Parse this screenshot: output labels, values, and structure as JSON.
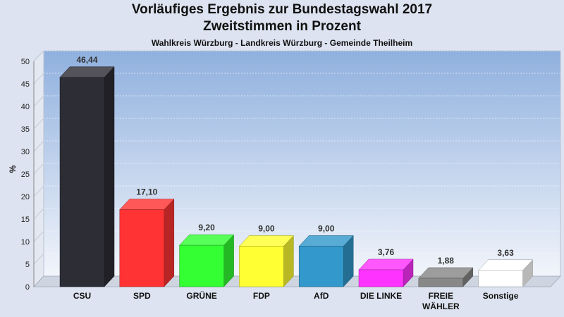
{
  "header": {
    "title_line1": "Vorläufiges Ergebnis zur Bundestagswahl 2017",
    "title_line2": "Zweitstimmen in Prozent",
    "subtitle": "Wahlkreis Würzburg - Landkreis Würzburg - Gemeinde Theilheim"
  },
  "chart_data": {
    "type": "bar",
    "title": "Vorläufiges Ergebnis zur Bundestagswahl 2017 — Zweitstimmen in Prozent",
    "subtitle": "Wahlkreis Würzburg - Landkreis Würzburg - Gemeinde Theilheim",
    "ylabel": "%",
    "ylim": [
      0,
      50
    ],
    "yticks": [
      0,
      5,
      10,
      15,
      20,
      25,
      30,
      35,
      40,
      45,
      50
    ],
    "grid": true,
    "categories": [
      {
        "lines": [
          "CSU"
        ]
      },
      {
        "lines": [
          "SPD"
        ]
      },
      {
        "lines": [
          "GRÜNE"
        ]
      },
      {
        "lines": [
          "FDP"
        ]
      },
      {
        "lines": [
          "AfD"
        ]
      },
      {
        "lines": [
          "DIE LINKE"
        ]
      },
      {
        "lines": [
          "FREIE",
          "WÄHLER"
        ]
      },
      {
        "lines": [
          "Sonstige"
        ]
      }
    ],
    "values": [
      46.44,
      17.1,
      9.2,
      9.0,
      9.0,
      3.76,
      1.88,
      3.63
    ],
    "value_labels": [
      "46,44",
      "17,10",
      "9,20",
      "9,00",
      "9,00",
      "3,76",
      "1,88",
      "3,63"
    ],
    "colors": [
      "#2d2d35",
      "#ff3333",
      "#33ff33",
      "#ffff33",
      "#3399cc",
      "#ff33ff",
      "#888888",
      "#ffffff"
    ]
  }
}
